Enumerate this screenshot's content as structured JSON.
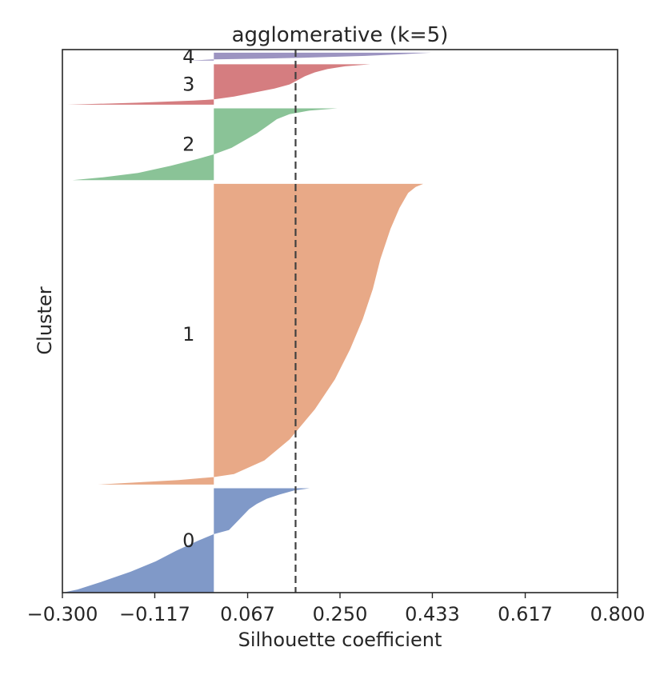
{
  "chart_data": {
    "type": "silhouette",
    "title": "agglomerative (k=5)",
    "xlabel": "Silhouette coefficient",
    "ylabel": "Cluster",
    "xlim": [
      -0.3,
      0.8
    ],
    "xticks": [
      -0.3,
      -0.117,
      0.067,
      0.25,
      0.433,
      0.617,
      0.8
    ],
    "xtick_labels": [
      "−0.300",
      "−0.117",
      "0.067",
      "0.250",
      "0.433",
      "0.617",
      "0.800"
    ],
    "average_silhouette": 0.162,
    "average_line_style": "dashed",
    "grid": false,
    "colors": {
      "cluster_0": "#8099c8",
      "cluster_1": "#e8a987",
      "cluster_2": "#8ac397",
      "cluster_3": "#d57d80",
      "cluster_4": "#9c94c1",
      "average_line": "#404040",
      "axes": "#262626"
    },
    "clusters": [
      {
        "label": "0",
        "size": 93,
        "min": -0.3,
        "max": 0.19,
        "profile": [
          [
            0.0,
            0.19
          ],
          [
            0.02,
            0.16
          ],
          [
            0.06,
            0.13
          ],
          [
            0.1,
            0.105
          ],
          [
            0.15,
            0.085
          ],
          [
            0.2,
            0.07
          ],
          [
            0.3,
            0.05
          ],
          [
            0.4,
            0.03
          ],
          [
            0.44,
            0.0
          ],
          [
            0.5,
            -0.03
          ],
          [
            0.6,
            -0.075
          ],
          [
            0.7,
            -0.115
          ],
          [
            0.8,
            -0.165
          ],
          [
            0.9,
            -0.225
          ],
          [
            0.97,
            -0.27
          ],
          [
            1.0,
            -0.3
          ]
        ]
      },
      {
        "label": "1",
        "size": 268,
        "min": -0.23,
        "max": 0.415,
        "profile": [
          [
            0.0,
            0.415
          ],
          [
            0.01,
            0.4
          ],
          [
            0.03,
            0.385
          ],
          [
            0.08,
            0.368
          ],
          [
            0.15,
            0.35
          ],
          [
            0.25,
            0.33
          ],
          [
            0.35,
            0.315
          ],
          [
            0.45,
            0.295
          ],
          [
            0.55,
            0.27
          ],
          [
            0.65,
            0.24
          ],
          [
            0.75,
            0.2
          ],
          [
            0.85,
            0.15
          ],
          [
            0.92,
            0.1
          ],
          [
            0.965,
            0.04
          ],
          [
            0.975,
            0.0
          ],
          [
            0.985,
            -0.07
          ],
          [
            1.0,
            -0.23
          ]
        ]
      },
      {
        "label": "2",
        "size": 64,
        "min": -0.28,
        "max": 0.245,
        "profile": [
          [
            0.0,
            0.245
          ],
          [
            0.03,
            0.19
          ],
          [
            0.08,
            0.15
          ],
          [
            0.15,
            0.125
          ],
          [
            0.25,
            0.105
          ],
          [
            0.35,
            0.085
          ],
          [
            0.45,
            0.06
          ],
          [
            0.55,
            0.035
          ],
          [
            0.64,
            0.0
          ],
          [
            0.7,
            -0.03
          ],
          [
            0.8,
            -0.085
          ],
          [
            0.9,
            -0.15
          ],
          [
            0.96,
            -0.22
          ],
          [
            1.0,
            -0.28
          ]
        ]
      },
      {
        "label": "3",
        "size": 36,
        "min": -0.29,
        "max": 0.31,
        "profile": [
          [
            0.0,
            0.31
          ],
          [
            0.05,
            0.26
          ],
          [
            0.12,
            0.225
          ],
          [
            0.2,
            0.2
          ],
          [
            0.3,
            0.18
          ],
          [
            0.4,
            0.165
          ],
          [
            0.5,
            0.15
          ],
          [
            0.6,
            0.12
          ],
          [
            0.7,
            0.08
          ],
          [
            0.8,
            0.04
          ],
          [
            0.87,
            0.0
          ],
          [
            0.9,
            -0.04
          ],
          [
            0.95,
            -0.15
          ],
          [
            1.0,
            -0.29
          ]
        ]
      },
      {
        "label": "4",
        "size": 7,
        "min": -0.05,
        "max": 0.43,
        "profile": [
          [
            0.0,
            0.43
          ],
          [
            0.2,
            0.37
          ],
          [
            0.4,
            0.3
          ],
          [
            0.6,
            0.2
          ],
          [
            0.75,
            0.1
          ],
          [
            0.85,
            0.0
          ],
          [
            1.0,
            -0.05
          ]
        ]
      }
    ]
  }
}
